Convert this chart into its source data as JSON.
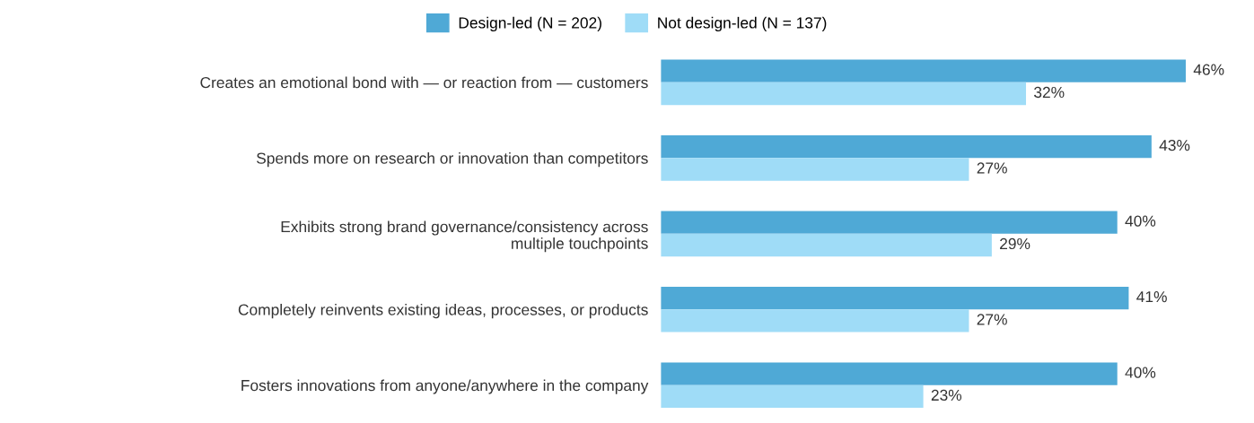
{
  "chart_data": {
    "type": "bar",
    "orientation": "horizontal",
    "legend": "top",
    "categories": [
      "Creates an emotional bond with — or reaction from — customers",
      "Spends more on research or innovation than competitors",
      "Exhibits strong brand governance/consistency across\nmultiple touchpoints",
      "Completely reinvents existing ideas, processes, or products",
      "Fosters innovations from anyone/anywhere in the company"
    ],
    "series": [
      {
        "name": "Design-led (N = 202)",
        "color": "#4fa9d6",
        "values": [
          46,
          43,
          40,
          41,
          40
        ],
        "value_labels": [
          "46%",
          "43%",
          "40%",
          "41%",
          "40%"
        ]
      },
      {
        "name": "Not design-led (N = 137)",
        "color": "#9fdcf7",
        "values": [
          32,
          27,
          29,
          27,
          23
        ],
        "value_labels": [
          "32%",
          "27%",
          "29%",
          "27%",
          "23%"
        ]
      }
    ]
  }
}
